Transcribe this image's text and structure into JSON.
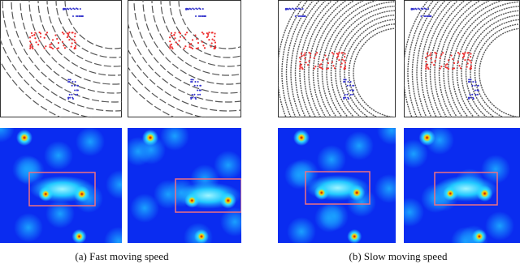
{
  "subfigures": [
    {
      "caption": "(a) Fast moving speed"
    },
    {
      "caption": "(b) Slow moving speed"
    }
  ]
}
